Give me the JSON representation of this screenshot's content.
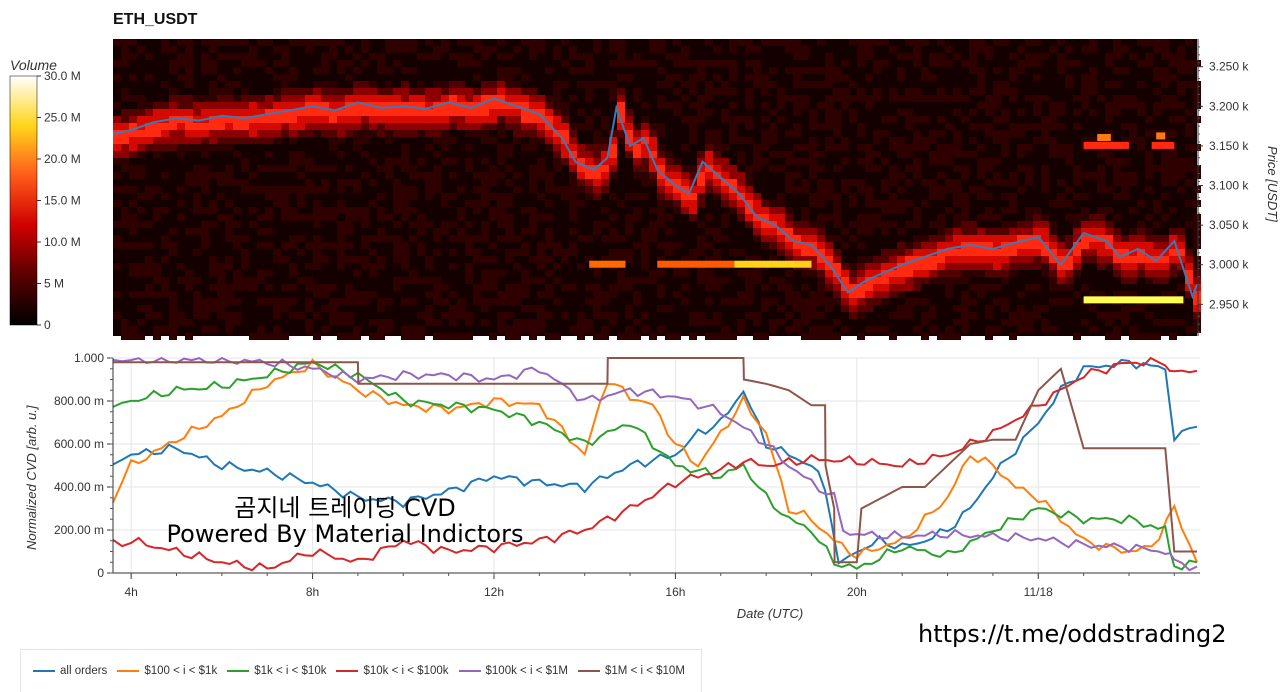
{
  "title": "ETH_USDT",
  "volume_colorbar": {
    "label": "Volume",
    "ticks": [
      "30.0 M",
      "25.0 M",
      "20.0 M",
      "15.0 M",
      "10.0 M",
      "5 M",
      "0"
    ]
  },
  "price_axis": {
    "label": "Price [USDT]",
    "ticks": [
      "3.250 k",
      "3.200 k",
      "3.150 k",
      "3.100 k",
      "3.050 k",
      "3.000 k",
      "2.950 k"
    ]
  },
  "cvd_axis": {
    "label": "Normalized CVD [arb. u.]",
    "ticks": [
      "1.000",
      "800.00 m",
      "600.00 m",
      "400.00 m",
      "200.00 m",
      "0"
    ]
  },
  "x_axis": {
    "label": "Date (UTC)",
    "ticks": [
      "4h",
      "8h",
      "12h",
      "16h",
      "20h",
      "11/18"
    ]
  },
  "watermark": {
    "line1": "곰지네 트레이딩 CVD",
    "line2": "Powered By Material Indictors"
  },
  "link": "https://t.me/oddstrading2",
  "colors": {
    "all_orders": "#1f77b4",
    "s100": "#ff7f0e",
    "s1k": "#2ca02c",
    "s10k": "#d62728",
    "s100k": "#9467bd",
    "s1m": "#8c564b"
  },
  "chart_data": [
    {
      "type": "heatmap",
      "title": "ETH_USDT",
      "ylabel": "Price [USDT]",
      "ylim": [
        2910,
        3285
      ],
      "colorbar": {
        "label": "Volume",
        "range": [
          0,
          30000000
        ]
      },
      "price_line": {
        "x": [
          3.6,
          4.0,
          4.5,
          5.0,
          5.5,
          6.0,
          6.5,
          7.0,
          7.5,
          8.0,
          8.5,
          9.0,
          9.5,
          10.0,
          10.5,
          11.0,
          11.5,
          12.0,
          12.5,
          13.0,
          13.5,
          13.8,
          14.2,
          14.5,
          14.7,
          15.0,
          15.3,
          15.6,
          16.0,
          16.3,
          16.6,
          17.0,
          17.4,
          17.8,
          18.2,
          18.6,
          19.0,
          19.4,
          19.8,
          20.2,
          20.6,
          21.0,
          21.5,
          22.0,
          22.5,
          23.0,
          23.5,
          24.0,
          24.5,
          25.0,
          25.5,
          25.8,
          26.2,
          26.6,
          27.0,
          27.4,
          27.5
        ],
        "y": [
          3165,
          3170,
          3180,
          3185,
          3182,
          3188,
          3185,
          3190,
          3195,
          3200,
          3195,
          3205,
          3198,
          3200,
          3197,
          3205,
          3198,
          3210,
          3200,
          3190,
          3160,
          3130,
          3120,
          3135,
          3198,
          3150,
          3160,
          3120,
          3100,
          3090,
          3130,
          3110,
          3090,
          3060,
          3050,
          3030,
          3025,
          3000,
          2965,
          2980,
          2990,
          3000,
          3010,
          3020,
          3025,
          3020,
          3028,
          3035,
          3000,
          3040,
          3030,
          3010,
          3020,
          3005,
          3030,
          2960,
          2975
        ]
      }
    },
    {
      "type": "line",
      "xlabel": "Date (UTC)",
      "ylabel": "Normalized CVD [arb. u.]",
      "xlim": [
        3.6,
        27.5
      ],
      "ylim": [
        0,
        1
      ],
      "x_ticks": {
        "4h": 4,
        "8h": 8,
        "12h": 12,
        "16h": 16,
        "20h": 20,
        "11/18": 24
      },
      "series": [
        {
          "name": "all orders",
          "x": [
            3.6,
            4.0,
            5.0,
            6.0,
            7.0,
            8.0,
            9.0,
            10.0,
            11.0,
            12.0,
            13.0,
            14.0,
            14.5,
            15.0,
            16.0,
            16.5,
            17.0,
            17.5,
            18.0,
            18.5,
            19.0,
            19.3,
            19.6,
            20.0,
            20.5,
            21.0,
            21.5,
            22.0,
            22.5,
            23.0,
            24.0,
            24.5,
            25.0,
            26.0,
            26.8,
            27.0,
            27.5
          ],
          "y": [
            0.5,
            0.55,
            0.58,
            0.5,
            0.47,
            0.42,
            0.35,
            0.33,
            0.38,
            0.45,
            0.42,
            0.4,
            0.45,
            0.5,
            0.55,
            0.65,
            0.7,
            0.85,
            0.6,
            0.55,
            0.5,
            0.4,
            0.05,
            0.1,
            0.15,
            0.12,
            0.15,
            0.2,
            0.3,
            0.45,
            0.7,
            0.85,
            0.95,
            0.98,
            0.95,
            0.63,
            0.68
          ]
        },
        {
          "name": "$100 < i < $1k",
          "x": [
            3.6,
            4.0,
            5.0,
            6.0,
            7.0,
            8.0,
            9.0,
            10.0,
            11.0,
            12.0,
            13.0,
            14.0,
            14.5,
            15.0,
            15.5,
            16.0,
            16.5,
            17.0,
            17.5,
            18.0,
            18.5,
            19.0,
            19.5,
            20.0,
            20.5,
            21.0,
            21.5,
            22.0,
            22.5,
            23.0,
            23.5,
            24.0,
            24.5,
            25.0,
            25.5,
            26.0,
            26.5,
            27.0,
            27.5
          ],
          "y": [
            0.35,
            0.5,
            0.62,
            0.73,
            0.88,
            0.97,
            0.85,
            0.78,
            0.76,
            0.8,
            0.78,
            0.55,
            0.9,
            0.82,
            0.78,
            0.6,
            0.5,
            0.65,
            0.8,
            0.65,
            0.3,
            0.25,
            0.15,
            0.08,
            0.12,
            0.15,
            0.25,
            0.35,
            0.55,
            0.5,
            0.4,
            0.35,
            0.25,
            0.15,
            0.12,
            0.1,
            0.12,
            0.3,
            0.05
          ]
        },
        {
          "name": "$1k < i < $10k",
          "x": [
            3.6,
            4.0,
            5.0,
            6.0,
            7.0,
            8.0,
            9.0,
            10.0,
            11.0,
            12.0,
            13.0,
            14.0,
            14.5,
            15.0,
            16.0,
            17.0,
            17.5,
            18.0,
            18.5,
            19.0,
            19.5,
            20.0,
            21.0,
            22.0,
            23.0,
            24.0,
            25.0,
            26.0,
            26.8,
            27.0,
            27.5
          ],
          "y": [
            0.78,
            0.8,
            0.85,
            0.87,
            0.92,
            0.98,
            0.92,
            0.8,
            0.78,
            0.76,
            0.7,
            0.6,
            0.65,
            0.7,
            0.5,
            0.45,
            0.5,
            0.35,
            0.25,
            0.2,
            0.05,
            0.02,
            0.12,
            0.08,
            0.2,
            0.3,
            0.25,
            0.25,
            0.2,
            0.03,
            0.05
          ]
        },
        {
          "name": "$10k < i < $100k",
          "x": [
            3.6,
            4.0,
            5.0,
            6.0,
            7.0,
            8.0,
            9.0,
            10.0,
            11.0,
            12.0,
            13.0,
            14.0,
            15.0,
            16.0,
            17.0,
            17.5,
            18.0,
            19.0,
            20.0,
            21.0,
            22.0,
            23.0,
            24.0,
            25.0,
            26.0,
            26.8,
            27.0,
            27.5
          ],
          "y": [
            0.14,
            0.15,
            0.1,
            0.05,
            0.02,
            0.1,
            0.05,
            0.15,
            0.1,
            0.12,
            0.15,
            0.2,
            0.3,
            0.42,
            0.48,
            0.52,
            0.5,
            0.53,
            0.52,
            0.5,
            0.55,
            0.65,
            0.78,
            0.92,
            0.98,
            0.98,
            0.93,
            0.94
          ]
        },
        {
          "name": "$100k < i < $1M",
          "x": [
            3.6,
            4.0,
            5.0,
            6.0,
            7.0,
            8.0,
            9.0,
            10.0,
            11.0,
            12.0,
            13.0,
            14.0,
            15.0,
            16.0,
            17.0,
            18.0,
            18.5,
            19.0,
            19.5,
            19.7,
            20.0,
            21.0,
            22.0,
            23.0,
            24.0,
            25.0,
            26.0,
            26.8,
            27.0,
            27.5
          ],
          "y": [
            0.99,
            0.99,
            0.99,
            0.99,
            0.98,
            0.95,
            0.9,
            0.92,
            0.92,
            0.9,
            0.95,
            0.8,
            0.85,
            0.82,
            0.75,
            0.6,
            0.5,
            0.42,
            0.35,
            0.2,
            0.18,
            0.17,
            0.18,
            0.17,
            0.16,
            0.13,
            0.12,
            0.1,
            0.05,
            0.03
          ]
        },
        {
          "name": "$1M < i < $10M",
          "x": [
            3.6,
            9.0,
            9.01,
            14.5,
            14.51,
            17.5,
            17.51,
            18.0,
            18.5,
            19.0,
            19.3,
            19.31,
            19.5,
            19.51,
            20.0,
            20.1,
            21.0,
            21.5,
            22.0,
            22.5,
            23.0,
            23.5,
            24.0,
            24.5,
            25.0,
            26.0,
            26.8,
            27.0,
            27.5
          ],
          "y": [
            0.98,
            0.98,
            0.88,
            0.88,
            1.0,
            1.0,
            0.9,
            0.88,
            0.85,
            0.78,
            0.78,
            0.5,
            0.3,
            0.05,
            0.05,
            0.3,
            0.4,
            0.4,
            0.5,
            0.6,
            0.62,
            0.62,
            0.85,
            0.95,
            0.58,
            0.58,
            0.58,
            0.1,
            0.1
          ]
        }
      ]
    }
  ]
}
